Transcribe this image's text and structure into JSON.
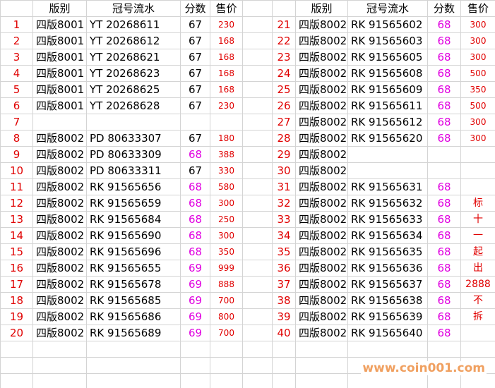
{
  "table": {
    "header": [
      "版别",
      "冠号流水",
      "分数",
      "售价"
    ],
    "left_rows": [
      [
        1,
        "四版8001",
        "YT 20268611",
        67,
        230
      ],
      [
        2,
        "四版8001",
        "YT 20268612",
        67,
        168
      ],
      [
        3,
        "四版8001",
        "YT 20268621",
        67,
        168
      ],
      [
        4,
        "四版8001",
        "YT 20268623",
        67,
        168
      ],
      [
        5,
        "四版8001",
        "YT 20268625",
        67,
        168
      ],
      [
        6,
        "四版8001",
        "YT 20268628",
        67,
        230
      ],
      [
        7,
        null,
        null,
        null,
        null
      ],
      [
        8,
        "四版8002",
        "PD 80633307",
        67,
        180
      ],
      [
        9,
        "四版8002",
        "PD 80633309",
        68,
        388
      ],
      [
        10,
        "四版8002",
        "PD 80633311",
        67,
        330
      ],
      [
        11,
        "四版8002",
        "RK 91565656",
        68,
        580
      ],
      [
        12,
        "四版8002",
        "RK 91565659",
        68,
        300
      ],
      [
        13,
        "四版8002",
        "RK 91565684",
        68,
        250
      ],
      [
        14,
        "四版8002",
        "RK 91565690",
        68,
        300
      ],
      [
        15,
        "四版8002",
        "RK 91565696",
        68,
        350
      ],
      [
        16,
        "四版8002",
        "RK 91565655",
        69,
        999
      ],
      [
        17,
        "四版8002",
        "RK 91565678",
        69,
        888
      ],
      [
        18,
        "四版8002",
        "RK 91565685",
        69,
        700
      ],
      [
        19,
        "四版8002",
        "RK 91565686",
        69,
        800
      ],
      [
        20,
        "四版8002",
        "RK 91565689",
        69,
        700
      ]
    ],
    "right_rows": [
      [
        21,
        "四版8002",
        "RK 91565602",
        68,
        300
      ],
      [
        22,
        "四版8002",
        "RK 91565603",
        68,
        300
      ],
      [
        23,
        "四版8002",
        "RK 91565605",
        68,
        300
      ],
      [
        24,
        "四版8002",
        "RK 91565608",
        68,
        500
      ],
      [
        25,
        "四版8002",
        "RK 91565609",
        68,
        350
      ],
      [
        26,
        "四版8002",
        "RK 91565611",
        68,
        500
      ],
      [
        27,
        "四版8002",
        "RK 91565612",
        68,
        300
      ],
      [
        28,
        "四版8002",
        "RK 91565620",
        68,
        300
      ],
      [
        29,
        "四版8002",
        null,
        null,
        null
      ],
      [
        30,
        "四版8002",
        null,
        null,
        null
      ],
      [
        31,
        "四版8002",
        "RK 91565631",
        68,
        null
      ],
      [
        32,
        "四版8002",
        "RK 91565632",
        68,
        "标"
      ],
      [
        33,
        "四版8002",
        "RK 91565633",
        68,
        "十"
      ],
      [
        34,
        "四版8002",
        "RK 91565634",
        68,
        "一"
      ],
      [
        35,
        "四版8002",
        "RK 91565635",
        68,
        "起"
      ],
      [
        36,
        "四版8002",
        "RK 91565636",
        68,
        "出"
      ],
      [
        37,
        "四版8002",
        "RK 91565637",
        68,
        "2888"
      ],
      [
        38,
        "四版8002",
        "RK 91565638",
        68,
        "不"
      ],
      [
        39,
        "四版8002",
        "RK 91565639",
        68,
        "拆"
      ],
      [
        40,
        "四版8002",
        "RK 91565640",
        68,
        null
      ]
    ]
  },
  "watermark": "www.coin001.com"
}
